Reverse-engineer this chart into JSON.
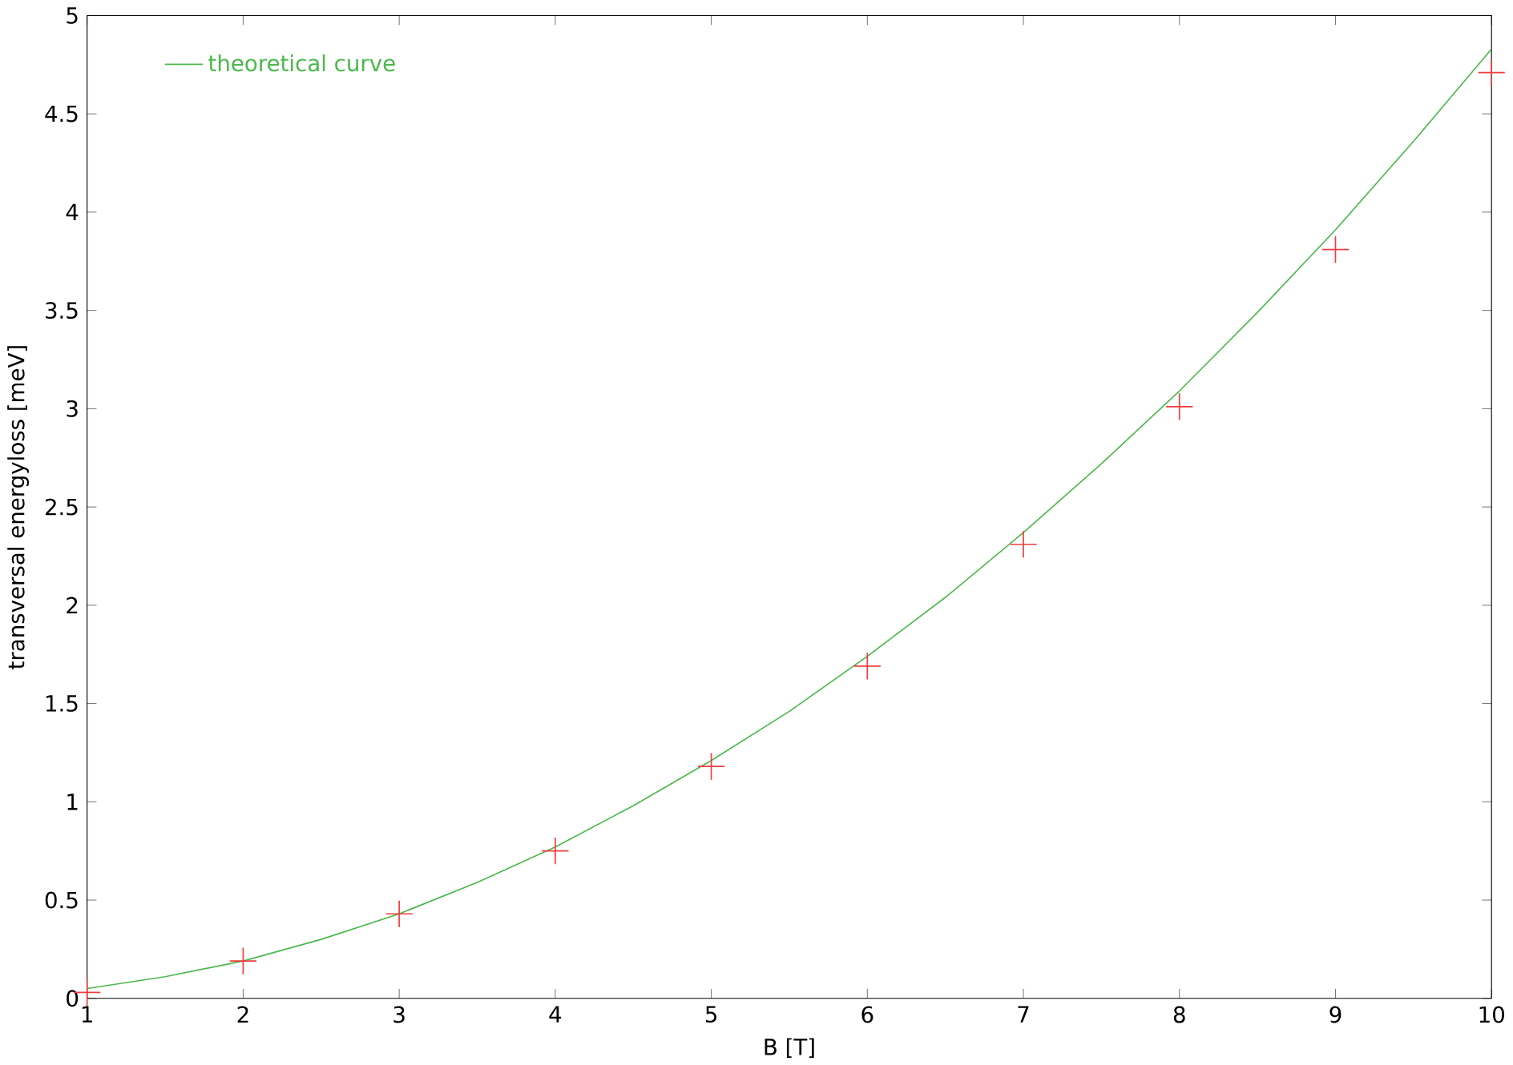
{
  "chart_data": {
    "type": "scatter",
    "xlabel": "B [T]",
    "ylabel": "transversal energyloss [meV]",
    "xlim": [
      1,
      10
    ],
    "ylim": [
      0,
      5
    ],
    "xticks": [
      1,
      2,
      3,
      4,
      5,
      6,
      7,
      8,
      9,
      10
    ],
    "yticks": [
      0,
      0.5,
      1,
      1.5,
      2,
      2.5,
      3,
      3.5,
      4,
      4.5,
      5
    ],
    "legend": "top left",
    "series": [
      {
        "color": "#f03c3c",
        "marker": "cross",
        "x": [
          1,
          2,
          3,
          4,
          5,
          6,
          7,
          8,
          9,
          10
        ],
        "values": [
          0.03,
          0.19,
          0.43,
          0.75,
          1.18,
          1.69,
          2.31,
          3.01,
          3.81,
          4.71
        ]
      },
      {
        "type": "line",
        "name": "theoretical curve",
        "color": "#4cb84c",
        "marker": "none",
        "line_style": "solid",
        "x": [
          1,
          1.5,
          2,
          2.5,
          3,
          3.5,
          4,
          4.5,
          5,
          5.5,
          6,
          6.5,
          7,
          7.5,
          8,
          8.5,
          9,
          9.5,
          10
        ],
        "values": [
          0.05,
          0.11,
          0.19,
          0.3,
          0.43,
          0.59,
          0.77,
          0.98,
          1.21,
          1.46,
          1.74,
          2.04,
          2.37,
          2.72,
          3.09,
          3.49,
          3.91,
          4.36,
          4.83
        ]
      }
    ]
  }
}
